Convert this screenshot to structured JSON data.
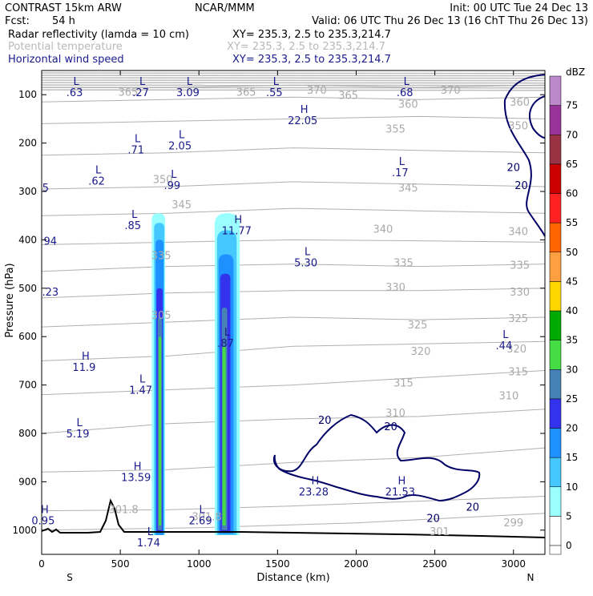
{
  "header": {
    "model": "CONTRAST 15km ARW",
    "agency": "NCAR/MMM",
    "init": "Init: 00 UTC Tue 24 Dec 13",
    "fcst_label": "Fcst:",
    "fcst_value": "54 h",
    "valid": "Valid: 06 UTC Thu 26 Dec 13 (16 ChT Thu 26 Dec 13)",
    "field1_name": "Radar reflectivity (lamda = 10 cm)",
    "field1_xy": "XY= 235.3,  2.5 to 235.3,214.7",
    "field2_name": "Potential temperature",
    "field2_xy": "XY= 235.3,  2.5 to 235.3,214.7",
    "field3_name": "Horizontal wind speed",
    "field3_xy": "XY= 235.3,  2.5 to 235.3,214.7"
  },
  "chart_data": {
    "type": "heatmap",
    "title": "",
    "xlabel": "Distance (km)",
    "ylabel": "Pressure (hPa)",
    "xlim": [
      0,
      3200
    ],
    "ylim": [
      1050,
      50
    ],
    "x_ticks": [
      0,
      500,
      1000,
      1500,
      2000,
      2500,
      3000
    ],
    "y_ticks": [
      100,
      200,
      300,
      400,
      500,
      600,
      700,
      800,
      900,
      1000
    ],
    "end_labels": {
      "left": "S",
      "right": "N"
    },
    "colorbar": {
      "unit": "dBZ",
      "levels": [
        0,
        5,
        10,
        15,
        20,
        25,
        30,
        35,
        40,
        45,
        50,
        55,
        60,
        65,
        70,
        75
      ],
      "colors": [
        "#ffffff",
        "#99ffff",
        "#44c8ff",
        "#1e90ff",
        "#3333ee",
        "#4682b4",
        "#44dd44",
        "#00aa00",
        "#ffd700",
        "#ffa040",
        "#ff6600",
        "#ff2222",
        "#cc0000",
        "#993344",
        "#993399",
        "#bb88cc"
      ]
    },
    "reflectivity_cells": [
      {
        "x": [
          680,
          800
        ],
        "top_hpa": 345,
        "levels": [
          {
            "dbz": 5,
            "x": [
              700,
              785
            ],
            "top": 345,
            "bottom": 1010
          },
          {
            "dbz": 10,
            "x": [
              715,
              780
            ],
            "top": 365,
            "bottom": 1010
          },
          {
            "dbz": 15,
            "x": [
              725,
              775
            ],
            "top": 400,
            "bottom": 1010
          },
          {
            "dbz": 20,
            "x": [
              730,
              770
            ],
            "top": 500,
            "bottom": 1005
          },
          {
            "dbz": 25,
            "x": [
              738,
              765
            ],
            "top": 560,
            "bottom": 1000
          },
          {
            "dbz": 30,
            "x": [
              745,
              760
            ],
            "top": 600,
            "bottom": 990
          }
        ]
      },
      {
        "x": [
          1080,
          1260
        ],
        "top_hpa": 345,
        "levels": [
          {
            "dbz": 5,
            "x": [
              1100,
              1260
            ],
            "top": 345,
            "bottom": 1010
          },
          {
            "dbz": 10,
            "x": [
              1115,
              1240
            ],
            "top": 380,
            "bottom": 1010
          },
          {
            "dbz": 15,
            "x": [
              1125,
              1220
            ],
            "top": 430,
            "bottom": 1008
          },
          {
            "dbz": 20,
            "x": [
              1135,
              1200
            ],
            "top": 470,
            "bottom": 1005
          },
          {
            "dbz": 25,
            "x": [
              1145,
              1180
            ],
            "top": 540,
            "bottom": 1000
          },
          {
            "dbz": 30,
            "x": [
              1150,
              1170
            ],
            "top": 620,
            "bottom": 990
          }
        ]
      }
    ],
    "theta_isentropes": [
      {
        "label": "299",
        "points": [
          [
            0,
            1000
          ],
          [
            1000,
            995
          ],
          [
            2000,
            985
          ],
          [
            3200,
            965
          ]
        ]
      },
      {
        "label": "301",
        "points": [
          [
            0,
            960
          ],
          [
            800,
            958
          ],
          [
            1600,
            950
          ],
          [
            2400,
            940
          ],
          [
            3200,
            930
          ]
        ]
      },
      {
        "label": "305",
        "points": [
          [
            0,
            880
          ],
          [
            800,
            875
          ],
          [
            1600,
            860
          ],
          [
            2400,
            850
          ],
          [
            3200,
            830
          ]
        ]
      },
      {
        "label": "310",
        "points": [
          [
            0,
            800
          ],
          [
            800,
            780
          ],
          [
            1600,
            770
          ],
          [
            2400,
            765
          ],
          [
            3200,
            750
          ]
        ]
      },
      {
        "label": "315",
        "points": [
          [
            0,
            720
          ],
          [
            800,
            710
          ],
          [
            1600,
            700
          ],
          [
            2400,
            685
          ],
          [
            3200,
            670
          ]
        ]
      },
      {
        "label": "320",
        "points": [
          [
            0,
            650
          ],
          [
            800,
            640
          ],
          [
            1600,
            620
          ],
          [
            2400,
            615
          ],
          [
            3200,
            610
          ]
        ]
      },
      {
        "label": "325",
        "points": [
          [
            0,
            580
          ],
          [
            800,
            570
          ],
          [
            1600,
            560
          ],
          [
            2400,
            565
          ],
          [
            3200,
            560
          ]
        ]
      },
      {
        "label": "330",
        "points": [
          [
            0,
            520
          ],
          [
            800,
            510
          ],
          [
            1600,
            505
          ],
          [
            2400,
            505
          ],
          [
            3200,
            500
          ]
        ]
      },
      {
        "label": "335",
        "points": [
          [
            0,
            465
          ],
          [
            800,
            455
          ],
          [
            1600,
            450
          ],
          [
            2400,
            455
          ],
          [
            3200,
            450
          ]
        ]
      },
      {
        "label": "340",
        "points": [
          [
            0,
            410
          ],
          [
            800,
            405
          ],
          [
            1600,
            400
          ],
          [
            2400,
            402
          ],
          [
            3200,
            405
          ]
        ]
      },
      {
        "label": "345",
        "points": [
          [
            0,
            350
          ],
          [
            800,
            345
          ],
          [
            1600,
            335
          ],
          [
            2400,
            340
          ],
          [
            3200,
            345
          ]
        ]
      },
      {
        "label": "350",
        "points": [
          [
            0,
            295
          ],
          [
            800,
            290
          ],
          [
            1600,
            280
          ],
          [
            2400,
            285
          ],
          [
            3200,
            290
          ]
        ]
      },
      {
        "label": "355",
        "points": [
          [
            0,
            225
          ],
          [
            800,
            220
          ],
          [
            1600,
            210
          ],
          [
            2400,
            215
          ],
          [
            3200,
            220
          ]
        ]
      },
      {
        "label": "360",
        "points": [
          [
            0,
            160
          ],
          [
            800,
            155
          ],
          [
            1600,
            150
          ],
          [
            2400,
            145
          ],
          [
            3200,
            150
          ]
        ]
      },
      {
        "label": "365",
        "points": [
          [
            0,
            115
          ],
          [
            800,
            110
          ],
          [
            1600,
            105
          ],
          [
            2400,
            110
          ],
          [
            3200,
            105
          ]
        ]
      },
      {
        "label": "370",
        "points": [
          [
            0,
            85
          ],
          [
            800,
            85
          ],
          [
            1600,
            80
          ],
          [
            2400,
            85
          ],
          [
            3200,
            80
          ]
        ]
      }
    ],
    "theta_labels": [
      {
        "text": "365",
        "x": 550,
        "p": 102
      },
      {
        "text": "365",
        "x": 1300,
        "p": 102
      },
      {
        "text": "370",
        "x": 1750,
        "p": 98
      },
      {
        "text": "365",
        "x": 1950,
        "p": 109
      },
      {
        "text": "370",
        "x": 2600,
        "p": 98
      },
      {
        "text": "360",
        "x": 2330,
        "p": 127
      },
      {
        "text": "355",
        "x": 2250,
        "p": 178
      },
      {
        "text": "350",
        "x": 770,
        "p": 283
      },
      {
        "text": "345",
        "x": 2330,
        "p": 300
      },
      {
        "text": "340",
        "x": 2170,
        "p": 385
      },
      {
        "text": "345",
        "x": 890,
        "p": 335
      },
      {
        "text": "335",
        "x": 760,
        "p": 440
      },
      {
        "text": "335",
        "x": 2300,
        "p": 455
      },
      {
        "text": "330",
        "x": 2250,
        "p": 505
      },
      {
        "text": "325",
        "x": 2390,
        "p": 583
      },
      {
        "text": "305",
        "x": 760,
        "p": 563
      },
      {
        "text": "320",
        "x": 2410,
        "p": 638
      },
      {
        "text": "315",
        "x": 2300,
        "p": 703
      },
      {
        "text": "310",
        "x": 2250,
        "p": 765
      },
      {
        "text": "301.8",
        "x": 520,
        "p": 965
      },
      {
        "text": "301.8",
        "x": 1050,
        "p": 980
      },
      {
        "text": "301",
        "x": 2530,
        "p": 1010
      },
      {
        "text": "299",
        "x": 3000,
        "p": 992
      },
      {
        "text": "310",
        "x": 2970,
        "p": 730
      },
      {
        "text": "315",
        "x": 3030,
        "p": 680
      },
      {
        "text": "320",
        "x": 3020,
        "p": 633
      },
      {
        "text": "325",
        "x": 3030,
        "p": 570
      },
      {
        "text": "330",
        "x": 3040,
        "p": 515
      },
      {
        "text": "335",
        "x": 3040,
        "p": 460
      },
      {
        "text": "340",
        "x": 3030,
        "p": 390
      },
      {
        "text": "350",
        "x": 3030,
        "p": 172
      },
      {
        "text": "360",
        "x": 3040,
        "p": 123
      }
    ],
    "extrema": [
      {
        "type": "L",
        "value": ".63",
        "x": 230,
        "p": 80
      },
      {
        "type": "L",
        "value": ".27",
        "x": 650,
        "p": 80
      },
      {
        "type": "L",
        "value": "3.09",
        "x": 950,
        "p": 80
      },
      {
        "type": "L",
        "value": ".55",
        "x": 1500,
        "p": 80
      },
      {
        "type": "L",
        "value": ".68",
        "x": 2330,
        "p": 80
      },
      {
        "type": "H",
        "value": "22.05",
        "x": 1680,
        "p": 138
      },
      {
        "type": "L",
        "value": ".71",
        "x": 620,
        "p": 198
      },
      {
        "type": "L",
        "value": "2.05",
        "x": 900,
        "p": 190
      },
      {
        "type": "L",
        "value": ".62",
        "x": 370,
        "p": 263
      },
      {
        "type": "L",
        "value": ".99",
        "x": 850,
        "p": 272
      },
      {
        "type": "L",
        "value": ".17",
        "x": 2300,
        "p": 245
      },
      {
        "type": "L",
        "value": ".85",
        "x": 600,
        "p": 355
      },
      {
        "type": "H",
        "value": "11.77",
        "x": 1260,
        "p": 365
      },
      {
        "type": "L",
        "value": "5.30",
        "x": 1700,
        "p": 432
      },
      {
        "type": "L",
        "value": ".87",
        "x": 1190,
        "p": 598
      },
      {
        "type": "L",
        "value": ".44",
        "x": 2960,
        "p": 603
      },
      {
        "type": "H",
        "value": "11.9",
        "x": 290,
        "p": 648
      },
      {
        "type": "L",
        "value": "1.47",
        "x": 650,
        "p": 695
      },
      {
        "type": "L",
        "value": "5.19",
        "x": 250,
        "p": 785
      },
      {
        "type": "H",
        "value": "13.59",
        "x": 620,
        "p": 875
      },
      {
        "type": "H",
        "value": "23.28",
        "x": 1750,
        "p": 905
      },
      {
        "type": "H",
        "value": "21.53",
        "x": 2300,
        "p": 905
      },
      {
        "type": "L",
        "value": "2.69",
        "x": 1030,
        "p": 965
      },
      {
        "type": "L",
        "value": "1.74",
        "x": 700,
        "p": 1010
      },
      {
        "type": "H",
        "value": "0.95",
        "x": 30,
        "p": 965
      }
    ],
    "edge_values": [
      {
        "text": "5",
        "x": 25,
        "p": 300
      },
      {
        "text": "94",
        "x": 55,
        "p": 410
      },
      {
        "text": ".23",
        "x": 55,
        "p": 515
      }
    ],
    "wind_contour_labels": [
      {
        "text": "20",
        "x": 1800,
        "p": 780
      },
      {
        "text": "20",
        "x": 2220,
        "p": 793
      },
      {
        "text": "20",
        "x": 2740,
        "p": 960
      },
      {
        "text": "20",
        "x": 2490,
        "p": 983
      },
      {
        "text": "20",
        "x": 3000,
        "p": 258
      },
      {
        "text": "20",
        "x": 3050,
        "p": 295
      }
    ]
  }
}
